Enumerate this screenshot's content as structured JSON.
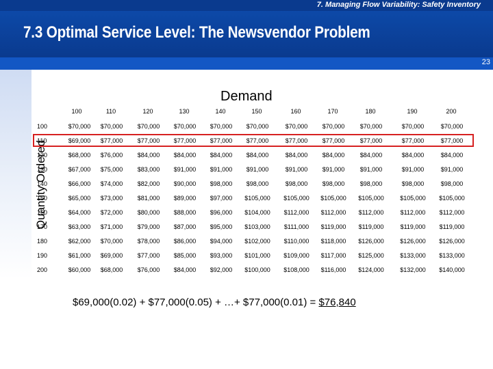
{
  "header": {
    "chapter": "7. Managing Flow Variability:  Safety Inventory",
    "title": "7.3 Optimal Service Level:  The Newsvendor Problem",
    "page_number": "23"
  },
  "table": {
    "demand_label": "Demand",
    "quantity_label": "Quantity Ordered",
    "columns": [
      "100",
      "110",
      "120",
      "130",
      "140",
      "150",
      "160",
      "170",
      "180",
      "190",
      "200"
    ],
    "rows": [
      {
        "q": "100",
        "values": [
          "$70,000",
          "$70,000",
          "$70,000",
          "$70,000",
          "$70,000",
          "$70,000",
          "$70,000",
          "$70,000",
          "$70,000",
          "$70,000",
          "$70,000"
        ]
      },
      {
        "q": "110",
        "values": [
          "$69,000",
          "$77,000",
          "$77,000",
          "$77,000",
          "$77,000",
          "$77,000",
          "$77,000",
          "$77,000",
          "$77,000",
          "$77,000",
          "$77,000"
        ]
      },
      {
        "q": "120",
        "values": [
          "$68,000",
          "$76,000",
          "$84,000",
          "$84,000",
          "$84,000",
          "$84,000",
          "$84,000",
          "$84,000",
          "$84,000",
          "$84,000",
          "$84,000"
        ]
      },
      {
        "q": "130",
        "values": [
          "$67,000",
          "$75,000",
          "$83,000",
          "$91,000",
          "$91,000",
          "$91,000",
          "$91,000",
          "$91,000",
          "$91,000",
          "$91,000",
          "$91,000"
        ]
      },
      {
        "q": "140",
        "values": [
          "$66,000",
          "$74,000",
          "$82,000",
          "$90,000",
          "$98,000",
          "$98,000",
          "$98,000",
          "$98,000",
          "$98,000",
          "$98,000",
          "$98,000"
        ]
      },
      {
        "q": "150",
        "values": [
          "$65,000",
          "$73,000",
          "$81,000",
          "$89,000",
          "$97,000",
          "$105,000",
          "$105,000",
          "$105,000",
          "$105,000",
          "$105,000",
          "$105,000"
        ]
      },
      {
        "q": "160",
        "values": [
          "$64,000",
          "$72,000",
          "$80,000",
          "$88,000",
          "$96,000",
          "$104,000",
          "$112,000",
          "$112,000",
          "$112,000",
          "$112,000",
          "$112,000"
        ]
      },
      {
        "q": "170",
        "values": [
          "$63,000",
          "$71,000",
          "$79,000",
          "$87,000",
          "$95,000",
          "$103,000",
          "$111,000",
          "$119,000",
          "$119,000",
          "$119,000",
          "$119,000"
        ]
      },
      {
        "q": "180",
        "values": [
          "$62,000",
          "$70,000",
          "$78,000",
          "$86,000",
          "$94,000",
          "$102,000",
          "$110,000",
          "$118,000",
          "$126,000",
          "$126,000",
          "$126,000"
        ]
      },
      {
        "q": "190",
        "values": [
          "$61,000",
          "$69,000",
          "$77,000",
          "$85,000",
          "$93,000",
          "$101,000",
          "$109,000",
          "$117,000",
          "$125,000",
          "$133,000",
          "$133,000"
        ]
      },
      {
        "q": "200",
        "values": [
          "$60,000",
          "$68,000",
          "$76,000",
          "$84,000",
          "$92,000",
          "$100,000",
          "$108,000",
          "$116,000",
          "$124,000",
          "$132,000",
          "$140,000"
        ]
      }
    ],
    "highlighted_row": "110",
    "highlight_color": "#d62020"
  },
  "formula": {
    "text": "$69,000(0.02) + $77,000(0.05) + …+ $77,000(0.01) = ",
    "result": "$76,840"
  },
  "colors": {
    "header_dark": "#0a3a8e",
    "header_mid": "#1357c4"
  }
}
